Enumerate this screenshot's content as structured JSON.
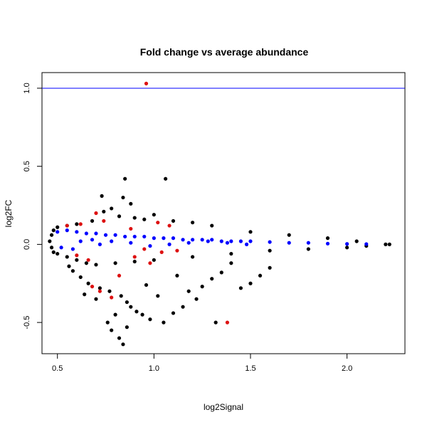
{
  "chart_data": {
    "type": "scatter",
    "title": "Fold change vs average abundance",
    "xlabel": "log2Signal",
    "ylabel": "log2FC",
    "xlim": [
      0.42,
      2.3
    ],
    "ylim": [
      -0.7,
      1.1
    ],
    "x_ticks": [
      0.5,
      1.0,
      1.5,
      2.0
    ],
    "x_tick_labels": [
      "0.5",
      "1.0",
      "1.5",
      "2.0"
    ],
    "y_ticks": [
      -0.5,
      0.0,
      0.5,
      1.0
    ],
    "y_tick_labels": [
      "-0.5",
      "0.0",
      "0.5",
      "1.0"
    ],
    "grid": false,
    "hline": {
      "y": 1.0,
      "color": "#0000ff"
    },
    "series": [
      {
        "color": "#000000",
        "values": [
          [
            0.85,
            0.42
          ],
          [
            1.06,
            0.42
          ],
          [
            0.73,
            0.31
          ],
          [
            0.84,
            0.3
          ],
          [
            0.88,
            0.26
          ],
          [
            0.78,
            0.23
          ],
          [
            0.74,
            0.21
          ],
          [
            1.0,
            0.19
          ],
          [
            0.9,
            0.17
          ],
          [
            0.82,
            0.18
          ],
          [
            0.68,
            0.15
          ],
          [
            0.95,
            0.16
          ],
          [
            1.1,
            0.15
          ],
          [
            1.2,
            0.14
          ],
          [
            0.6,
            0.13
          ],
          [
            0.55,
            0.12
          ],
          [
            0.5,
            0.11
          ],
          [
            0.48,
            0.09
          ],
          [
            0.47,
            0.06
          ],
          [
            0.46,
            0.02
          ],
          [
            0.47,
            -0.02
          ],
          [
            0.48,
            -0.05
          ],
          [
            0.5,
            -0.06
          ],
          [
            0.55,
            -0.08
          ],
          [
            0.6,
            -0.1
          ],
          [
            0.65,
            -0.12
          ],
          [
            0.7,
            -0.13
          ],
          [
            0.8,
            -0.12
          ],
          [
            0.9,
            -0.11
          ],
          [
            1.0,
            -0.1
          ],
          [
            1.2,
            -0.08
          ],
          [
            1.4,
            -0.06
          ],
          [
            1.6,
            -0.04
          ],
          [
            1.8,
            -0.03
          ],
          [
            2.0,
            -0.02
          ],
          [
            2.1,
            -0.01
          ],
          [
            2.2,
            0.0
          ],
          [
            2.22,
            0.0
          ],
          [
            1.3,
            0.12
          ],
          [
            1.5,
            0.08
          ],
          [
            1.7,
            0.06
          ],
          [
            1.9,
            0.04
          ],
          [
            2.05,
            0.02
          ],
          [
            0.58,
            -0.17
          ],
          [
            0.62,
            -0.21
          ],
          [
            0.66,
            -0.25
          ],
          [
            0.72,
            -0.28
          ],
          [
            0.77,
            -0.3
          ],
          [
            0.83,
            -0.33
          ],
          [
            0.86,
            -0.37
          ],
          [
            0.88,
            -0.4
          ],
          [
            0.91,
            -0.43
          ],
          [
            0.94,
            -0.45
          ],
          [
            0.98,
            -0.48
          ],
          [
            0.8,
            -0.45
          ],
          [
            0.76,
            -0.5
          ],
          [
            0.78,
            -0.55
          ],
          [
            0.82,
            -0.6
          ],
          [
            0.84,
            -0.64
          ],
          [
            0.86,
            -0.53
          ],
          [
            1.05,
            -0.5
          ],
          [
            1.1,
            -0.44
          ],
          [
            1.15,
            -0.4
          ],
          [
            1.22,
            -0.35
          ],
          [
            1.18,
            -0.3
          ],
          [
            1.25,
            -0.27
          ],
          [
            1.3,
            -0.22
          ],
          [
            1.45,
            -0.28
          ],
          [
            1.5,
            -0.25
          ],
          [
            1.55,
            -0.2
          ],
          [
            1.32,
            -0.5
          ],
          [
            1.6,
            -0.15
          ],
          [
            0.96,
            -0.26
          ],
          [
            1.02,
            -0.33
          ],
          [
            0.7,
            -0.35
          ],
          [
            0.64,
            -0.32
          ],
          [
            0.56,
            -0.14
          ],
          [
            1.12,
            -0.2
          ],
          [
            1.35,
            -0.18
          ],
          [
            1.4,
            -0.12
          ]
        ]
      },
      {
        "color": "#0000ff",
        "values": [
          [
            0.5,
            0.08
          ],
          [
            0.55,
            0.09
          ],
          [
            0.6,
            0.08
          ],
          [
            0.65,
            0.07
          ],
          [
            0.7,
            0.07
          ],
          [
            0.75,
            0.06
          ],
          [
            0.8,
            0.06
          ],
          [
            0.85,
            0.05
          ],
          [
            0.9,
            0.05
          ],
          [
            0.95,
            0.05
          ],
          [
            1.0,
            0.04
          ],
          [
            1.05,
            0.04
          ],
          [
            1.1,
            0.04
          ],
          [
            1.15,
            0.03
          ],
          [
            1.2,
            0.03
          ],
          [
            1.25,
            0.03
          ],
          [
            1.3,
            0.03
          ],
          [
            1.35,
            0.02
          ],
          [
            1.4,
            0.02
          ],
          [
            1.45,
            0.02
          ],
          [
            1.5,
            0.02
          ],
          [
            1.6,
            0.015
          ],
          [
            1.7,
            0.01
          ],
          [
            1.8,
            0.01
          ],
          [
            1.9,
            0.005
          ],
          [
            2.0,
            0.003
          ],
          [
            2.1,
            0.002
          ],
          [
            0.52,
            -0.02
          ],
          [
            0.58,
            -0.03
          ],
          [
            0.62,
            0.02
          ],
          [
            0.68,
            0.03
          ],
          [
            0.72,
            0.0
          ],
          [
            0.78,
            0.02
          ],
          [
            0.88,
            0.01
          ],
          [
            0.98,
            -0.01
          ],
          [
            1.08,
            0.0
          ],
          [
            1.18,
            0.01
          ],
          [
            1.28,
            0.02
          ],
          [
            1.38,
            0.01
          ],
          [
            1.48,
            0.0
          ]
        ]
      },
      {
        "color": "#dd1111",
        "values": [
          [
            0.96,
            1.03
          ],
          [
            1.38,
            -0.5
          ],
          [
            0.55,
            0.12
          ],
          [
            0.62,
            0.13
          ],
          [
            0.7,
            0.2
          ],
          [
            0.74,
            0.15
          ],
          [
            1.02,
            0.14
          ],
          [
            1.08,
            0.12
          ],
          [
            0.6,
            -0.07
          ],
          [
            0.66,
            -0.1
          ],
          [
            0.68,
            -0.27
          ],
          [
            0.72,
            -0.3
          ],
          [
            0.78,
            -0.34
          ],
          [
            0.82,
            -0.2
          ],
          [
            0.9,
            -0.08
          ],
          [
            0.98,
            -0.12
          ],
          [
            1.04,
            -0.05
          ],
          [
            1.12,
            -0.04
          ],
          [
            0.95,
            -0.03
          ],
          [
            0.88,
            0.1
          ]
        ]
      }
    ]
  }
}
